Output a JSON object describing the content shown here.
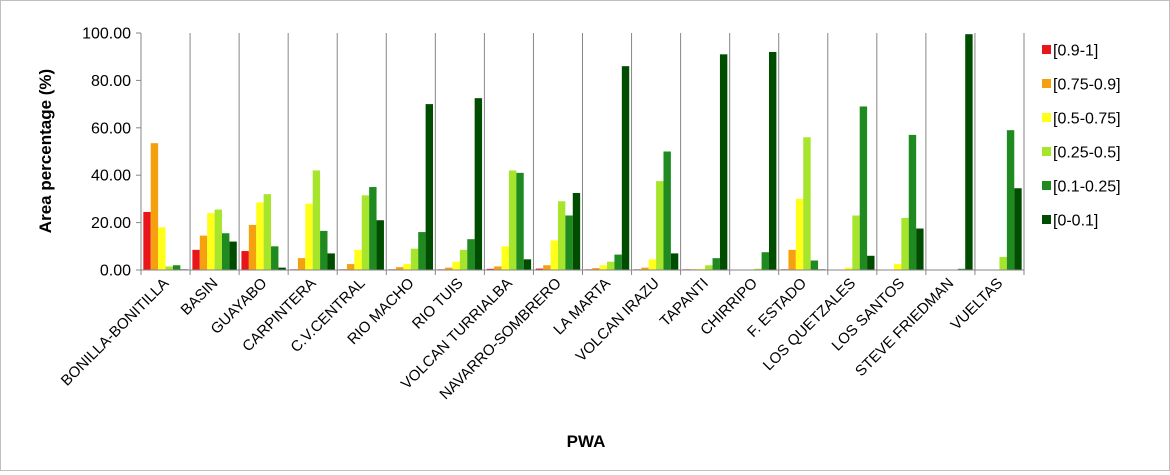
{
  "chart_data": {
    "type": "bar",
    "title": "",
    "xlabel": "PWA",
    "ylabel": "Area percentage (%)",
    "ylim": [
      0,
      100
    ],
    "yticks": [
      "0.00",
      "20.00",
      "40.00",
      "60.00",
      "80.00",
      "100.00"
    ],
    "grid": false,
    "legend_position": "right",
    "categories": [
      "BONILLA-BONITILLA",
      "BASIN",
      "GUAYABO",
      "CARPINTERA",
      "C.V.CENTRAL",
      "RIO MACHO",
      "RIO TUIS",
      "VOLCAN TURRIALBA",
      "NAVARRO-SOMBRERO",
      "LA MARTA",
      "VOLCAN IRAZU",
      "TAPANTI",
      "CHIRRIPO",
      "F. ESTADO",
      "LOS QUETZALES",
      "LOS SANTOS",
      "STEVE FRIEDMAN",
      "VUELTAS"
    ],
    "series": [
      {
        "name": "[0.9-1]",
        "color": "#e8151b",
        "values": [
          24.5,
          8.5,
          8.0,
          0.3,
          0.3,
          0.3,
          0.3,
          0.5,
          0.6,
          0.3,
          0.3,
          0.3,
          0,
          0.3,
          0,
          0,
          0,
          0
        ]
      },
      {
        "name": "[0.75-0.9]",
        "color": "#f5a00f",
        "values": [
          53.5,
          14.5,
          19.0,
          5.0,
          2.5,
          1.2,
          1.0,
          1.5,
          2.0,
          0.8,
          1.0,
          0.3,
          0,
          8.5,
          0,
          0,
          0,
          0
        ]
      },
      {
        "name": "[0.5-0.75]",
        "color": "#ffff19",
        "values": [
          18.0,
          24.0,
          28.5,
          28.0,
          8.5,
          2.5,
          3.5,
          10.0,
          12.5,
          2.0,
          4.5,
          0.5,
          0,
          30.0,
          1.0,
          2.5,
          0,
          0
        ]
      },
      {
        "name": "[0.25-0.5]",
        "color": "#a6e52b",
        "values": [
          1.5,
          25.5,
          32.0,
          42.0,
          31.5,
          9.0,
          8.5,
          42.0,
          29.0,
          3.5,
          37.5,
          2.0,
          0.5,
          56.0,
          23.0,
          22.0,
          0,
          5.5
        ]
      },
      {
        "name": "[0.1-0.25]",
        "color": "#1f8a1f",
        "values": [
          2.0,
          15.5,
          10.0,
          16.5,
          35.0,
          16.0,
          13.0,
          41.0,
          23.0,
          6.5,
          50.0,
          5.0,
          7.5,
          4.0,
          69.0,
          57.0,
          0.5,
          59.0
        ]
      },
      {
        "name": "[0-0.1]",
        "color": "#004d00",
        "values": [
          0.3,
          12.0,
          1.0,
          7.0,
          21.0,
          70.0,
          72.5,
          4.5,
          32.5,
          86.0,
          7.0,
          91.0,
          92.0,
          0.3,
          6.0,
          17.5,
          99.5,
          34.5
        ]
      }
    ]
  }
}
